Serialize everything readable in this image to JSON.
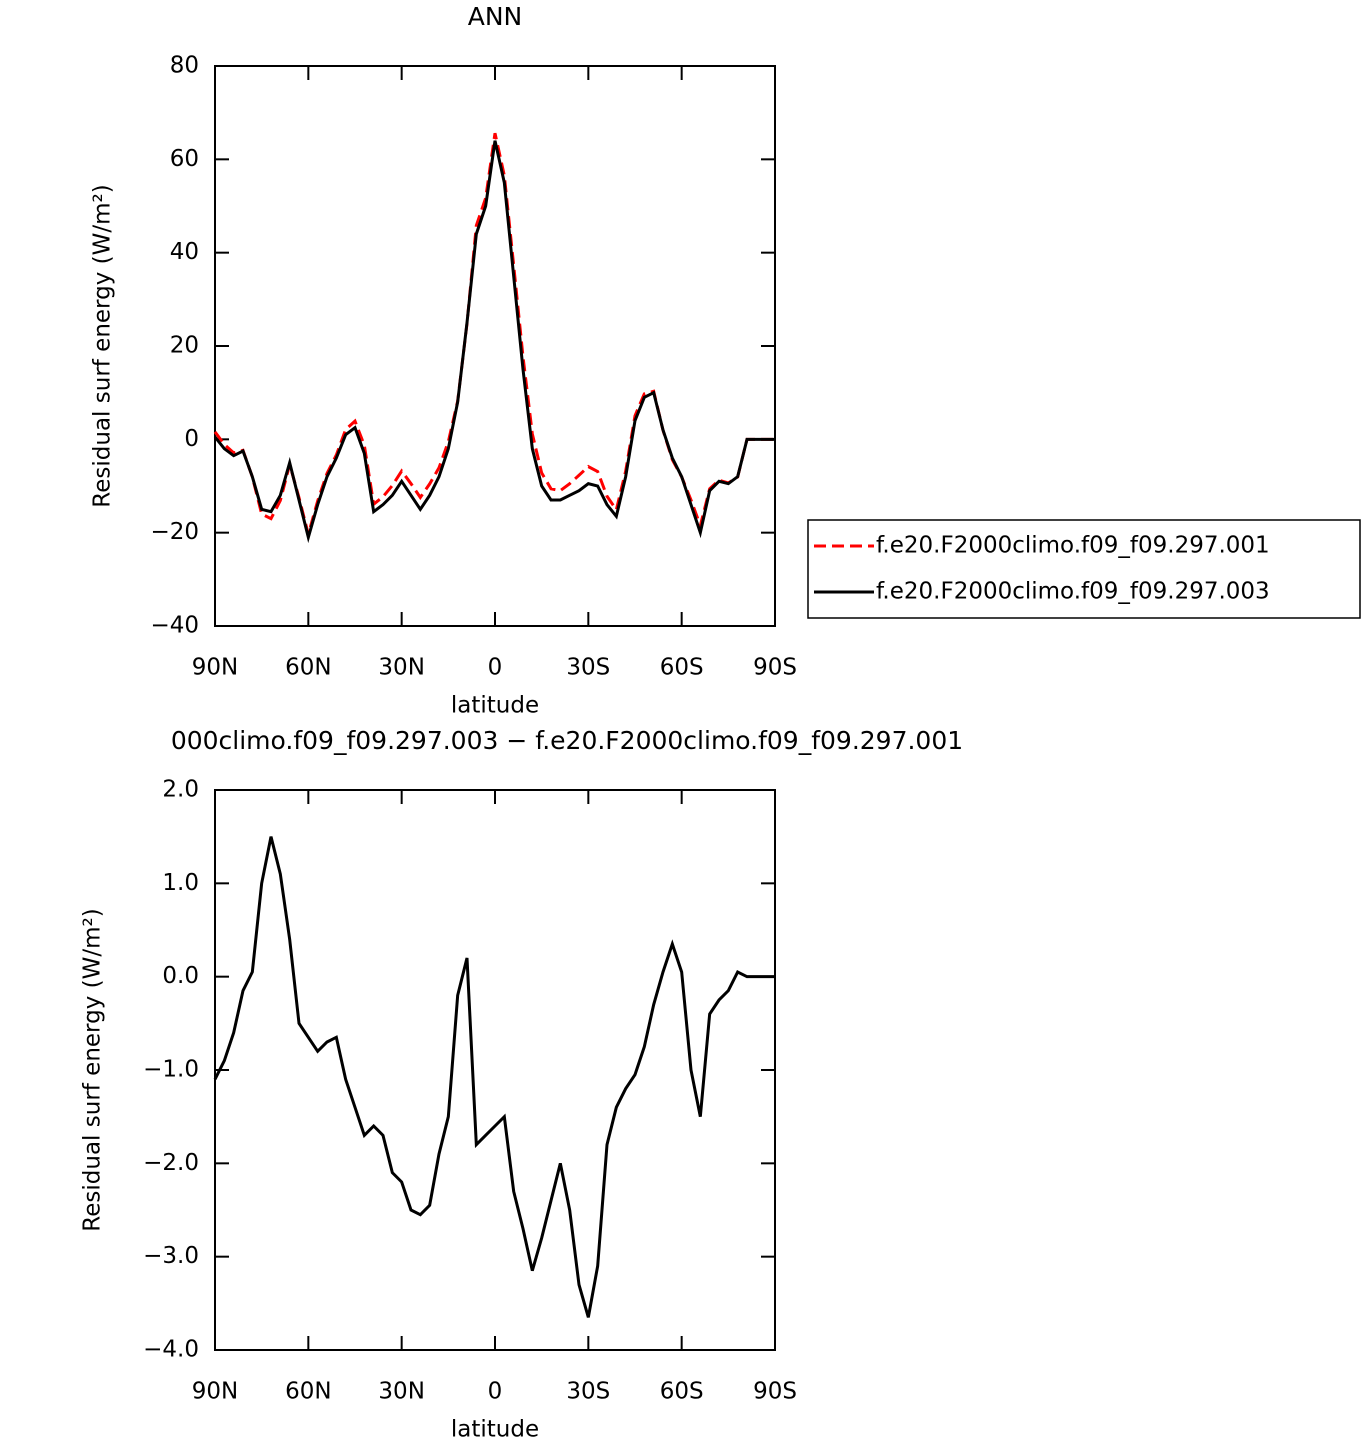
{
  "chart_data": [
    {
      "type": "line",
      "title": "ANN",
      "xlabel": "latitude",
      "ylabel": "Residual surf energy (W/m²)",
      "x": [
        90,
        87,
        84,
        81,
        78,
        75,
        72,
        69,
        66,
        63,
        60,
        57,
        54,
        51,
        48,
        45,
        42,
        39,
        36,
        33,
        30,
        27,
        24,
        21,
        18,
        15,
        12,
        9,
        6,
        3,
        0,
        -3,
        -6,
        -9,
        -12,
        -15,
        -18,
        -21,
        -24,
        -27,
        -30,
        -33,
        -36,
        -39,
        -42,
        -45,
        -48,
        -51,
        -54,
        -57,
        -60,
        -63,
        -66,
        -69,
        -72,
        -75,
        -78,
        -81,
        -84,
        -87,
        -90
      ],
      "xlim": [
        90,
        -90
      ],
      "xticks": [
        {
          "value": 90,
          "label": "90N"
        },
        {
          "value": 60,
          "label": "60N"
        },
        {
          "value": 30,
          "label": "30N"
        },
        0,
        {
          "value": -30,
          "label": "30S"
        },
        {
          "value": -60,
          "label": "60S"
        },
        {
          "value": -90,
          "label": "90S"
        }
      ],
      "ylim": [
        -40,
        80
      ],
      "yticks": [
        {
          "value": -40,
          "label": "−40"
        },
        {
          "value": -20,
          "label": "−20"
        },
        0,
        20,
        40,
        60,
        80
      ],
      "legend": "right",
      "series": [
        {
          "name": "f.e20.F2000climo.f09_f09.297.001",
          "color": "#ff0000",
          "dash": "dashed",
          "values": [
            1.6,
            -1.1,
            -2.9,
            -2.35,
            -8.05,
            -16,
            -17,
            -13.1,
            -5.4,
            -12.5,
            -20.35,
            -13.2,
            -7.3,
            -3.35,
            2.1,
            3.9,
            -1.3,
            -13.9,
            -12.3,
            -9.9,
            -6.8,
            -9.5,
            -12.45,
            -9.55,
            -6.1,
            -0.5,
            8.2,
            24.8,
            45.8,
            51.7,
            65.6,
            56.5,
            37.3,
            17.7,
            1.15,
            -7.2,
            -10.6,
            -11,
            -9.5,
            -7.7,
            -5.85,
            -6.9,
            -12.2,
            -15.1,
            -6.8,
            5.05,
            9.75,
            10.3,
            1.95,
            -4.35,
            -8.05,
            -13,
            -18.5,
            -10.6,
            -8.75,
            -9.35,
            -8.05,
            0,
            0,
            0,
            0
          ]
        },
        {
          "name": "f.e20.F2000climo.f09_f09.297.003",
          "color": "#000000",
          "dash": "solid",
          "values": [
            0.5,
            -2,
            -3.5,
            -2.5,
            -8,
            -15,
            -15.5,
            -12,
            -5,
            -13,
            -21,
            -14,
            -8,
            -4,
            1,
            2.5,
            -3,
            -15.5,
            -14,
            -12,
            -9,
            -12,
            -15,
            -12,
            -8,
            -2,
            8,
            25,
            44,
            50,
            64,
            55,
            35,
            15,
            -2,
            -10,
            -13,
            -13,
            -12,
            -11,
            -9.5,
            -10,
            -14,
            -16.5,
            -8,
            4,
            9,
            10,
            2,
            -4,
            -8,
            -14,
            -20,
            -11,
            -9,
            -9.5,
            -8,
            0,
            0,
            0,
            0
          ]
        }
      ]
    },
    {
      "type": "line",
      "title": "000climo.f09_f09.297.003 − f.e20.F2000climo.f09_f09.297.001",
      "xlabel": "latitude",
      "ylabel": "Residual surf energy (W/m²)",
      "x": [
        90,
        87,
        84,
        81,
        78,
        75,
        72,
        69,
        66,
        63,
        60,
        57,
        54,
        51,
        48,
        45,
        42,
        39,
        36,
        33,
        30,
        27,
        24,
        21,
        18,
        15,
        12,
        9,
        6,
        3,
        0,
        -3,
        -6,
        -9,
        -12,
        -15,
        -18,
        -21,
        -24,
        -27,
        -30,
        -33,
        -36,
        -39,
        -42,
        -45,
        -48,
        -51,
        -54,
        -57,
        -60,
        -63,
        -66,
        -69,
        -72,
        -75,
        -78,
        -81,
        -84,
        -87,
        -90
      ],
      "xlim": [
        90,
        -90
      ],
      "xticks": [
        {
          "value": 90,
          "label": "90N"
        },
        {
          "value": 60,
          "label": "60N"
        },
        {
          "value": 30,
          "label": "30N"
        },
        0,
        {
          "value": -30,
          "label": "30S"
        },
        {
          "value": -60,
          "label": "60S"
        },
        {
          "value": -90,
          "label": "90S"
        }
      ],
      "ylim": [
        -4,
        2
      ],
      "yticks": [
        {
          "value": -4,
          "label": "−4.0"
        },
        {
          "value": -3,
          "label": "−3.0"
        },
        {
          "value": -2,
          "label": "−2.0"
        },
        {
          "value": -1,
          "label": "−1.0"
        },
        {
          "value": 0,
          "label": "0.0"
        },
        {
          "value": 1,
          "label": "1.0"
        },
        {
          "value": 2,
          "label": "2.0"
        }
      ],
      "color": "#000000",
      "values": [
        -1.1,
        -0.9,
        -0.6,
        -0.15,
        0.05,
        1.0,
        1.5,
        1.1,
        0.4,
        -0.5,
        -0.65,
        -0.8,
        -0.7,
        -0.65,
        -1.1,
        -1.4,
        -1.7,
        -1.6,
        -1.7,
        -2.1,
        -2.2,
        -2.5,
        -2.55,
        -2.45,
        -1.9,
        -1.5,
        -0.2,
        0.2,
        -1.8,
        -1.7,
        -1.6,
        -1.5,
        -2.3,
        -2.7,
        -3.15,
        -2.8,
        -2.4,
        -2.0,
        -2.5,
        -3.3,
        -3.65,
        -3.1,
        -1.8,
        -1.4,
        -1.2,
        -1.05,
        -0.75,
        -0.3,
        0.05,
        0.35,
        0.05,
        -1.0,
        -1.5,
        -0.4,
        -0.25,
        -0.15,
        0.05,
        0,
        0,
        0,
        0
      ]
    }
  ]
}
